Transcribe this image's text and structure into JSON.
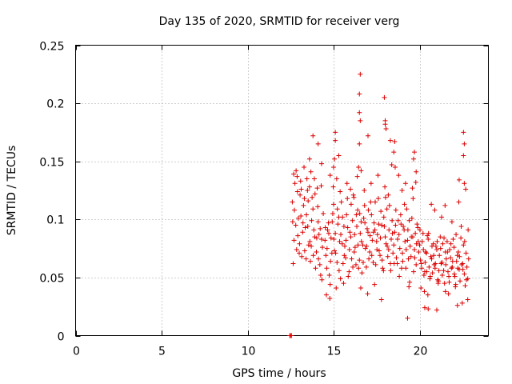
{
  "chart_data": {
    "type": "scatter",
    "title": "Day 135 of 2020, SRMTID for receiver verg",
    "xlabel": "GPS time / hours",
    "ylabel": "SRMTID / TECUs",
    "xlim": [
      0,
      24
    ],
    "ylim": [
      0,
      0.25
    ],
    "x_ticks": [
      0,
      5,
      10,
      15,
      20
    ],
    "x_tick_labels": [
      "0",
      "5",
      "10",
      "15",
      "20"
    ],
    "y_ticks": [
      0,
      0.05,
      0.1,
      0.15,
      0.2,
      0.25
    ],
    "y_tick_labels": [
      "0",
      "0.05",
      "0.1",
      "0.15",
      "0.2",
      "0.25"
    ],
    "grid": true,
    "marker": "plus",
    "marker_color": "#dd0000",
    "series": [
      {
        "name": "SRMTID",
        "x": [
          12.45,
          12.5,
          12.55,
          12.6,
          12.7,
          12.8,
          12.9,
          13.0,
          13.1,
          13.2,
          13.3,
          13.4,
          13.5,
          13.6,
          13.7,
          13.8,
          13.9,
          14.0,
          14.1,
          14.2,
          14.3,
          14.4,
          12.65,
          12.75,
          12.85,
          12.95,
          13.05,
          13.15,
          13.25,
          13.35,
          13.45,
          13.55,
          13.65,
          13.75,
          13.85,
          13.95,
          14.05,
          14.15,
          14.25,
          14.35,
          12.62,
          12.72,
          12.82,
          12.92,
          13.02,
          13.12,
          13.22,
          13.32,
          13.42,
          13.52,
          13.62,
          13.72,
          13.82,
          13.92,
          14.02,
          14.12,
          14.22,
          14.32,
          12.68,
          12.88,
          13.08,
          13.28,
          13.48,
          13.68,
          13.88,
          14.08,
          14.28,
          13.8,
          14.1,
          13.6,
          14.3,
          14.5,
          14.6,
          14.7,
          14.8,
          14.9,
          15.0,
          15.1,
          15.2,
          15.3,
          15.4,
          15.5,
          15.6,
          15.7,
          15.8,
          15.9,
          16.0,
          16.1,
          16.2,
          16.3,
          16.4,
          14.55,
          14.65,
          14.75,
          14.85,
          14.95,
          15.05,
          15.15,
          15.25,
          15.35,
          15.45,
          15.55,
          15.65,
          15.75,
          15.85,
          15.95,
          16.05,
          16.15,
          16.25,
          16.35,
          16.45,
          14.52,
          14.62,
          14.72,
          14.82,
          14.92,
          15.02,
          15.12,
          15.22,
          15.32,
          15.42,
          15.52,
          15.62,
          15.72,
          15.82,
          15.92,
          16.02,
          16.12,
          16.22,
          16.32,
          16.42,
          14.58,
          14.78,
          14.98,
          15.18,
          15.38,
          15.58,
          15.78,
          15.98,
          16.18,
          16.38,
          15.1,
          15.1,
          15.05,
          15.0,
          15.3,
          14.8,
          16.5,
          16.6,
          16.7,
          16.8,
          16.9,
          17.0,
          17.1,
          17.2,
          17.3,
          17.4,
          17.5,
          17.6,
          17.7,
          17.8,
          17.9,
          18.0,
          18.1,
          18.2,
          18.3,
          18.4,
          16.55,
          16.65,
          16.75,
          16.85,
          16.95,
          17.05,
          17.15,
          17.25,
          17.35,
          17.45,
          17.55,
          17.65,
          17.75,
          17.85,
          17.95,
          18.05,
          18.15,
          18.25,
          18.35,
          18.45,
          16.52,
          16.62,
          16.72,
          16.82,
          16.92,
          17.02,
          17.12,
          17.22,
          17.32,
          17.42,
          17.52,
          17.62,
          17.72,
          17.82,
          17.92,
          18.02,
          18.12,
          18.22,
          18.32,
          18.42,
          16.58,
          16.78,
          16.98,
          17.18,
          17.38,
          17.58,
          17.78,
          17.98,
          18.18,
          18.38,
          16.55,
          16.5,
          16.5,
          16.55,
          16.5,
          16.45,
          16.6,
          17.95,
          18.0,
          18.05,
          18.0,
          18.3,
          18.5,
          17.0,
          18.5,
          18.6,
          18.7,
          18.8,
          18.9,
          19.0,
          19.1,
          19.2,
          19.3,
          19.4,
          19.5,
          19.6,
          19.7,
          19.8,
          19.9,
          18.55,
          18.65,
          18.75,
          18.85,
          18.95,
          19.05,
          19.15,
          19.25,
          19.35,
          19.45,
          19.55,
          19.65,
          19.75,
          19.85,
          19.95,
          18.52,
          18.62,
          18.72,
          18.82,
          18.92,
          19.02,
          19.12,
          19.22,
          19.32,
          19.42,
          19.52,
          19.62,
          19.72,
          19.82,
          19.92,
          18.58,
          18.78,
          18.98,
          19.18,
          19.38,
          19.58,
          19.78,
          18.55,
          19.7,
          19.65,
          19.8,
          19.3,
          20.0,
          20.1,
          20.2,
          20.3,
          20.4,
          20.5,
          20.6,
          20.7,
          20.8,
          20.9,
          21.0,
          21.1,
          21.2,
          21.3,
          21.4,
          21.5,
          21.6,
          21.7,
          21.8,
          21.9,
          22.0,
          22.1,
          22.2,
          22.3,
          22.4,
          22.5,
          22.6,
          22.7,
          22.8,
          20.05,
          20.15,
          20.25,
          20.35,
          20.45,
          20.55,
          20.65,
          20.75,
          20.85,
          20.95,
          21.05,
          21.15,
          21.25,
          21.35,
          21.45,
          21.55,
          21.65,
          21.75,
          21.85,
          21.95,
          22.05,
          22.15,
          22.25,
          22.35,
          22.45,
          22.55,
          22.65,
          22.75,
          22.85,
          20.02,
          20.12,
          20.22,
          20.32,
          20.42,
          20.52,
          20.62,
          20.72,
          20.82,
          20.92,
          21.02,
          21.12,
          21.22,
          21.32,
          21.42,
          21.52,
          21.62,
          21.72,
          21.82,
          21.92,
          22.02,
          22.12,
          22.22,
          22.32,
          22.42,
          22.52,
          22.62,
          22.72,
          22.82,
          20.08,
          20.28,
          20.48,
          20.68,
          20.88,
          21.08,
          21.28,
          21.48,
          21.68,
          21.88,
          22.08,
          22.28,
          22.48,
          22.68,
          22.55,
          22.6,
          22.55,
          22.3,
          22.6,
          20.3,
          21.0,
          21.5,
          22.2,
          22.8,
          20.5
        ],
        "y": [
          0.0,
          0.0,
          0.0,
          0.115,
          0.082,
          0.095,
          0.124,
          0.071,
          0.103,
          0.089,
          0.118,
          0.066,
          0.094,
          0.128,
          0.077,
          0.109,
          0.085,
          0.072,
          0.098,
          0.061,
          0.083,
          0.105,
          0.062,
          0.131,
          0.074,
          0.101,
          0.121,
          0.068,
          0.112,
          0.093,
          0.135,
          0.078,
          0.064,
          0.119,
          0.091,
          0.058,
          0.127,
          0.087,
          0.052,
          0.076,
          0.098,
          0.108,
          0.142,
          0.086,
          0.079,
          0.126,
          0.097,
          0.073,
          0.104,
          0.116,
          0.081,
          0.099,
          0.069,
          0.122,
          0.084,
          0.066,
          0.092,
          0.048,
          0.139,
          0.137,
          0.133,
          0.145,
          0.125,
          0.141,
          0.135,
          0.111,
          0.129,
          0.172,
          0.165,
          0.152,
          0.148,
          0.082,
          0.058,
          0.097,
          0.044,
          0.071,
          0.113,
          0.088,
          0.063,
          0.102,
          0.049,
          0.079,
          0.094,
          0.067,
          0.118,
          0.055,
          0.085,
          0.099,
          0.072,
          0.061,
          0.108,
          0.069,
          0.091,
          0.052,
          0.084,
          0.105,
          0.073,
          0.041,
          0.096,
          0.081,
          0.115,
          0.062,
          0.077,
          0.104,
          0.051,
          0.089,
          0.066,
          0.121,
          0.076,
          0.094,
          0.058,
          0.093,
          0.075,
          0.088,
          0.064,
          0.098,
          0.083,
          0.071,
          0.109,
          0.056,
          0.087,
          0.102,
          0.069,
          0.082,
          0.093,
          0.074,
          0.113,
          0.059,
          0.087,
          0.104,
          0.078,
          0.035,
          0.032,
          0.128,
          0.135,
          0.124,
          0.045,
          0.131,
          0.126,
          0.119,
          0.137,
          0.175,
          0.168,
          0.152,
          0.145,
          0.155,
          0.138,
          0.065,
          0.098,
          0.078,
          0.112,
          0.059,
          0.089,
          0.072,
          0.104,
          0.063,
          0.091,
          0.081,
          0.118,
          0.069,
          0.095,
          0.056,
          0.085,
          0.109,
          0.074,
          0.062,
          0.099,
          0.088,
          0.054,
          0.101,
          0.075,
          0.092,
          0.066,
          0.115,
          0.082,
          0.097,
          0.061,
          0.087,
          0.073,
          0.107,
          0.058,
          0.094,
          0.079,
          0.068,
          0.112,
          0.083,
          0.071,
          0.105,
          0.081,
          0.063,
          0.097,
          0.077,
          0.108,
          0.086,
          0.069,
          0.089,
          0.115,
          0.074,
          0.096,
          0.084,
          0.065,
          0.102,
          0.119,
          0.077,
          0.091,
          0.056,
          0.088,
          0.041,
          0.125,
          0.036,
          0.131,
          0.044,
          0.138,
          0.031,
          0.128,
          0.121,
          0.147,
          0.225,
          0.208,
          0.192,
          0.185,
          0.165,
          0.145,
          0.142,
          0.205,
          0.185,
          0.178,
          0.182,
          0.168,
          0.158,
          0.172,
          0.078,
          0.095,
          0.062,
          0.087,
          0.104,
          0.071,
          0.091,
          0.058,
          0.082,
          0.099,
          0.068,
          0.085,
          0.074,
          0.061,
          0.093,
          0.089,
          0.067,
          0.099,
          0.075,
          0.058,
          0.094,
          0.081,
          0.109,
          0.066,
          0.077,
          0.101,
          0.055,
          0.088,
          0.096,
          0.072,
          0.062,
          0.108,
          0.083,
          0.051,
          0.096,
          0.064,
          0.113,
          0.074,
          0.091,
          0.046,
          0.085,
          0.118,
          0.067,
          0.079,
          0.081,
          0.145,
          0.138,
          0.125,
          0.131,
          0.042,
          0.127,
          0.132,
          0.167,
          0.158,
          0.152,
          0.141,
          0.015,
          0.078,
          0.062,
          0.088,
          0.055,
          0.071,
          0.083,
          0.049,
          0.066,
          0.079,
          0.058,
          0.074,
          0.047,
          0.085,
          0.063,
          0.056,
          0.072,
          0.081,
          0.051,
          0.067,
          0.059,
          0.076,
          0.044,
          0.069,
          0.057,
          0.084,
          0.062,
          0.053,
          0.071,
          0.049,
          0.065,
          0.081,
          0.052,
          0.072,
          0.086,
          0.059,
          0.068,
          0.054,
          0.061,
          0.077,
          0.048,
          0.069,
          0.062,
          0.079,
          0.045,
          0.066,
          0.055,
          0.074,
          0.058,
          0.083,
          0.051,
          0.064,
          0.072,
          0.047,
          0.061,
          0.078,
          0.043,
          0.059,
          0.066,
          0.091,
          0.058,
          0.074,
          0.063,
          0.055,
          0.088,
          0.051,
          0.077,
          0.069,
          0.062,
          0.081,
          0.056,
          0.075,
          0.052,
          0.084,
          0.061,
          0.072,
          0.046,
          0.079,
          0.064,
          0.053,
          0.087,
          0.058,
          0.068,
          0.094,
          0.057,
          0.081,
          0.048,
          0.091,
          0.041,
          0.038,
          0.035,
          0.113,
          0.108,
          0.045,
          0.102,
          0.112,
          0.036,
          0.098,
          0.042,
          0.115,
          0.028,
          0.126,
          0.175,
          0.165,
          0.155,
          0.134,
          0.131,
          0.024,
          0.022,
          0.038,
          0.026,
          0.031,
          0.023
        ]
      }
    ]
  }
}
